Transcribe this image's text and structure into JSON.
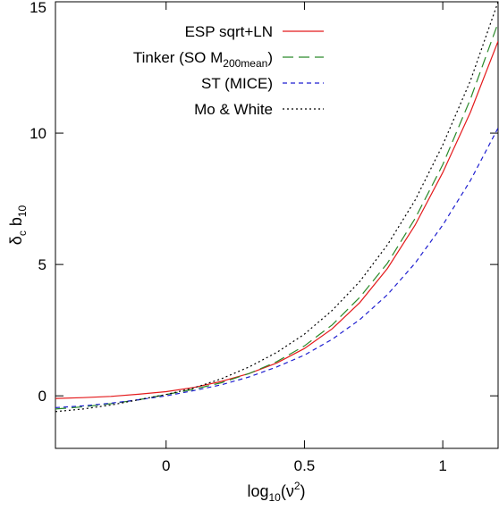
{
  "chart_data": {
    "type": "line",
    "title": "",
    "xlabel": "log10(ν2)",
    "xlabel_parts": {
      "base": "log",
      "sub": "10",
      "open": "(ν",
      "sup": "2",
      "close": ")"
    },
    "ylabel": "δc b10",
    "ylabel_parts": {
      "delta": "δ",
      "delta_sub": "c",
      "b": " b",
      "b_sub": "10"
    },
    "xlim": [
      -0.4,
      1.2
    ],
    "ylim": [
      -2,
      15
    ],
    "xticks": [
      {
        "value": 0,
        "label": "0"
      },
      {
        "value": 0.5,
        "label": "0.5"
      },
      {
        "value": 1,
        "label": "1"
      }
    ],
    "yticks": [
      {
        "value": 0,
        "label": "0"
      },
      {
        "value": 5,
        "label": "5"
      },
      {
        "value": 10,
        "label": "10"
      },
      {
        "value": 15,
        "label": "15"
      }
    ],
    "grid": false,
    "legend_position": "top-left",
    "series": [
      {
        "name": "ESP sqrt+LN",
        "legend_parts": {
          "text": "ESP sqrt+LN"
        },
        "color": "#e41a1c",
        "dash": "solid",
        "x": [
          -0.4,
          -0.3,
          -0.2,
          -0.1,
          0.0,
          0.1,
          0.2,
          0.3,
          0.4,
          0.5,
          0.6,
          0.7,
          0.8,
          0.9,
          1.0,
          1.1,
          1.2
        ],
        "y": [
          -0.1,
          -0.07,
          -0.02,
          0.06,
          0.16,
          0.32,
          0.55,
          0.85,
          1.25,
          1.8,
          2.55,
          3.55,
          4.85,
          6.5,
          8.5,
          10.8,
          13.5
        ]
      },
      {
        "name": "Tinker (SO M200mean)",
        "legend_parts": {
          "text": "Tinker (SO M",
          "sub": "200mean",
          "tail": ")"
        },
        "color": "#2a8a2a",
        "dash": "long",
        "x": [
          -0.4,
          -0.3,
          -0.2,
          -0.1,
          0.0,
          0.1,
          0.2,
          0.3,
          0.4,
          0.5,
          0.6,
          0.7,
          0.8,
          0.9,
          1.0,
          1.1,
          1.2
        ],
        "y": [
          -0.5,
          -0.42,
          -0.3,
          -0.15,
          0.05,
          0.25,
          0.5,
          0.85,
          1.3,
          1.9,
          2.7,
          3.75,
          5.05,
          6.75,
          8.8,
          11.3,
          14.2
        ]
      },
      {
        "name": "ST (MICE)",
        "legend_parts": {
          "text": "ST (MICE)"
        },
        "color": "#1f1fd0",
        "dash": "short",
        "x": [
          -0.4,
          -0.3,
          -0.2,
          -0.1,
          0.0,
          0.1,
          0.2,
          0.3,
          0.4,
          0.5,
          0.6,
          0.7,
          0.8,
          0.9,
          1.0,
          1.1,
          1.2
        ],
        "y": [
          -0.45,
          -0.38,
          -0.28,
          -0.15,
          0.0,
          0.2,
          0.42,
          0.72,
          1.1,
          1.55,
          2.15,
          2.9,
          3.85,
          5.05,
          6.5,
          8.2,
          10.2
        ]
      },
      {
        "name": "Mo & White",
        "legend_parts": {
          "text": "Mo & White"
        },
        "color": "#000000",
        "dash": "dot",
        "x": [
          -0.4,
          -0.3,
          -0.2,
          -0.1,
          0.0,
          0.1,
          0.2,
          0.3,
          0.4,
          0.5,
          0.6,
          0.7,
          0.8,
          0.9,
          1.0,
          1.1,
          1.2
        ],
        "y": [
          -0.6,
          -0.5,
          -0.35,
          -0.15,
          0.05,
          0.3,
          0.65,
          1.1,
          1.65,
          2.35,
          3.25,
          4.35,
          5.75,
          7.45,
          9.55,
          12.0,
          15.0
        ]
      }
    ]
  }
}
